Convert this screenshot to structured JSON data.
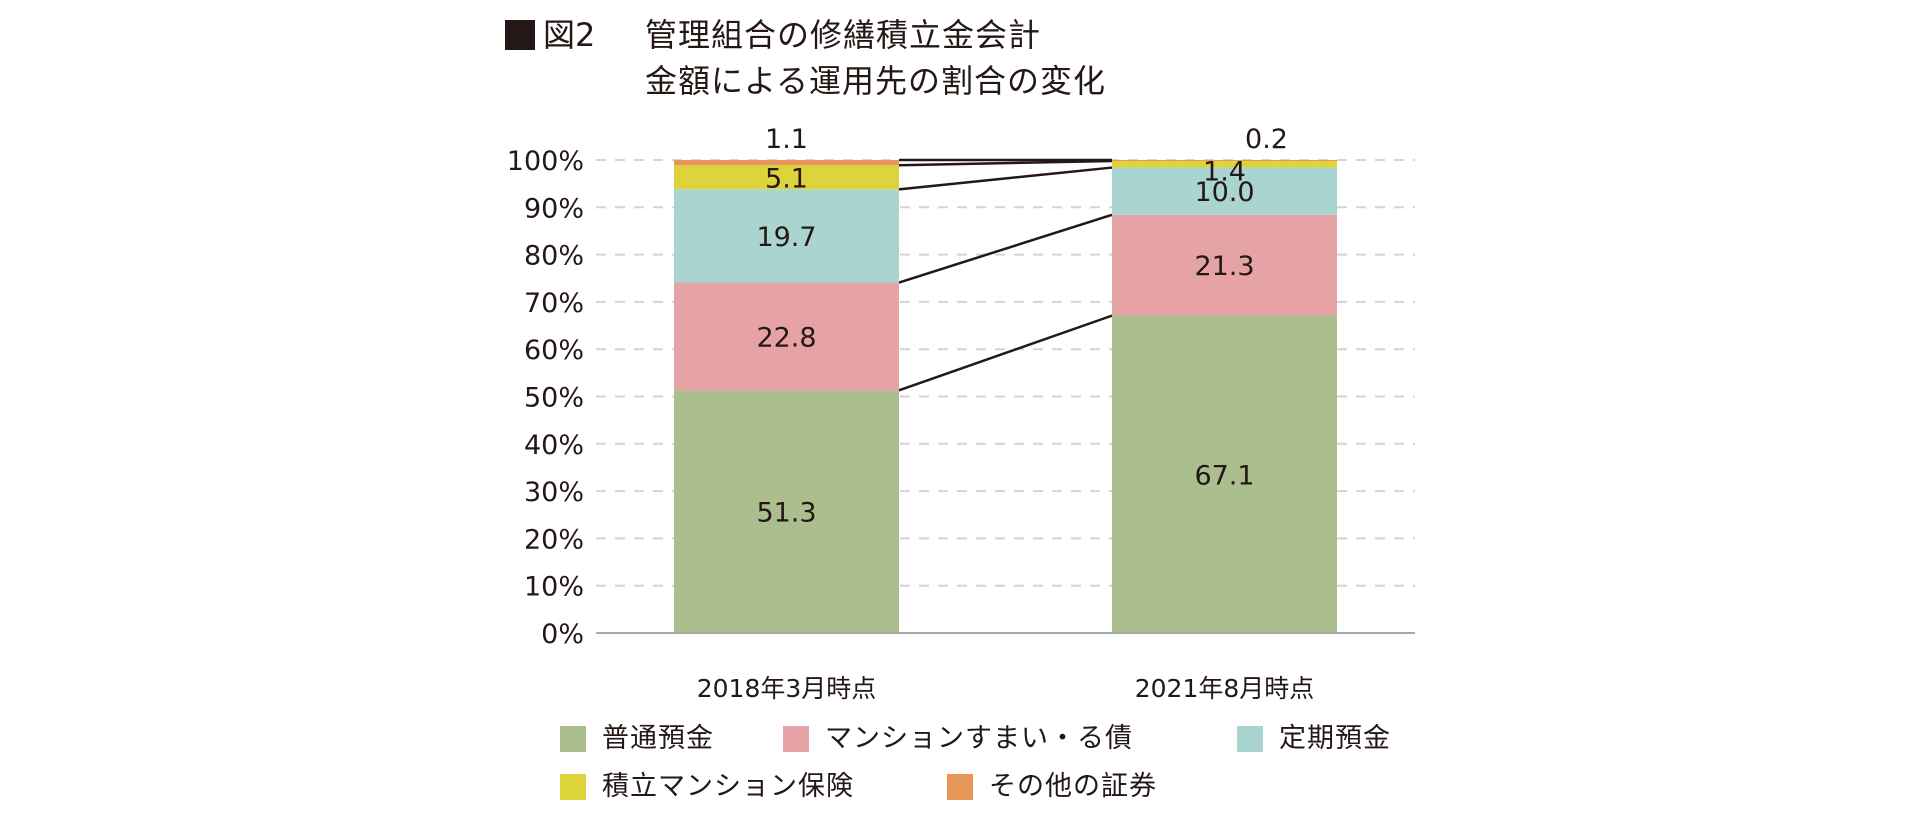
{
  "title": {
    "figure_number": "図2",
    "line1": "管理組合の修繕積立金会計",
    "line2": "金額による運用先の割合の変化"
  },
  "chart_data": {
    "type": "bar",
    "stacked": true,
    "title": "管理組合の修繕積立金会計 金額による運用先の割合の変化",
    "categories": [
      "2018年3月時点",
      "2021年8月時点"
    ],
    "series": [
      {
        "name": "普通預金",
        "color": "#ABBE8E",
        "values": [
          51.3,
          67.1
        ]
      },
      {
        "name": "マンションすまい・る債",
        "color": "#E5A3A6",
        "values": [
          22.8,
          21.3
        ]
      },
      {
        "name": "定期預金",
        "color": "#A9D4D0",
        "values": [
          19.7,
          10.0
        ]
      },
      {
        "name": "積立マンション保険",
        "color": "#DCD43A",
        "values": [
          5.1,
          1.4
        ]
      },
      {
        "name": "その他の証券",
        "color": "#E8965A",
        "values": [
          1.1,
          0.2
        ]
      }
    ],
    "data_labels": [
      [
        "51.3",
        "22.8",
        "19.7",
        "5.1",
        "1.1"
      ],
      [
        "67.1",
        "21.3",
        "10.0",
        "1.4",
        "0.2"
      ]
    ],
    "yticks": [
      "0%",
      "10%",
      "20%",
      "30%",
      "40%",
      "50%",
      "60%",
      "70%",
      "80%",
      "90%",
      "100%"
    ],
    "ylim": [
      0,
      100
    ],
    "xlabel": "",
    "ylabel": "",
    "grid": true,
    "connector_lines": true,
    "legend_position": "bottom"
  },
  "legend": [
    {
      "label": "普通預金",
      "color": "#ABBE8E"
    },
    {
      "label": "マンションすまい・る債",
      "color": "#E5A3A6"
    },
    {
      "label": "定期預金",
      "color": "#A9D4D0"
    },
    {
      "label": "積立マンション保険",
      "color": "#DCD43A"
    },
    {
      "label": "その他の証券",
      "color": "#E8965A"
    }
  ]
}
